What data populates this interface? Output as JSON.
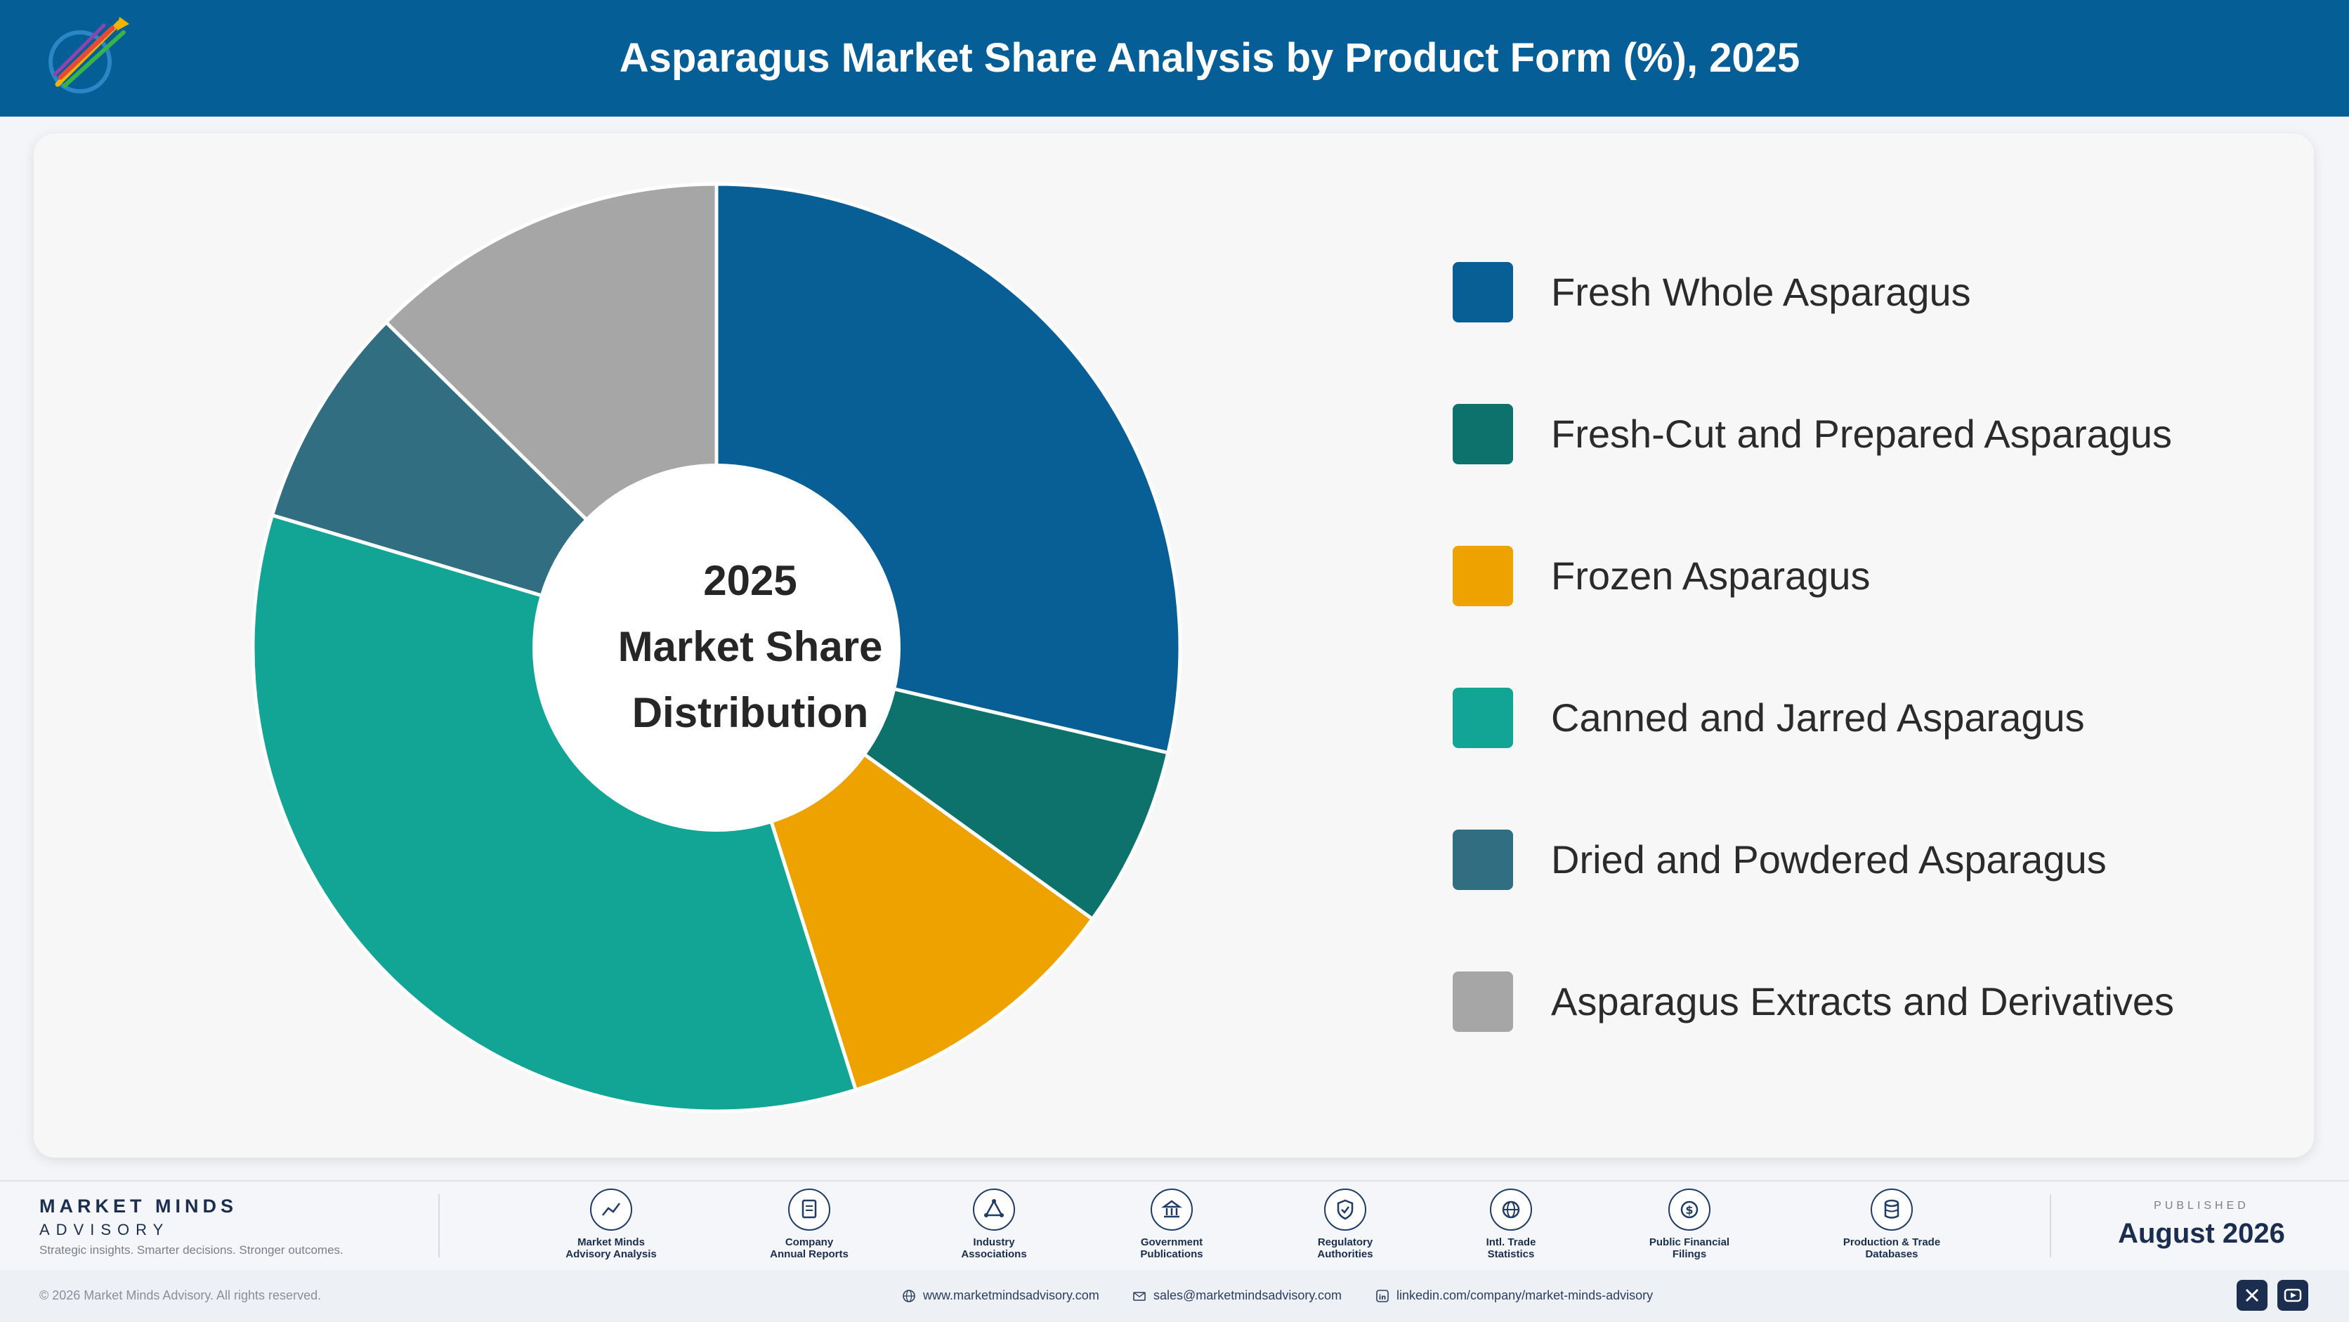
{
  "header": {
    "title": "Asparagus Market Share Analysis by Product Form (%), 2025"
  },
  "chart_data": {
    "type": "pie",
    "title": "Asparagus Market Share Analysis by Product Form (%), 2025",
    "donut_center_text": [
      "2025",
      "Market Share",
      "Distribution"
    ],
    "categories": [
      "Fresh Whole Asparagus",
      "Fresh-Cut and Prepared Asparagus",
      "Frozen Asparagus",
      "Canned and Jarred Asparagus",
      "Dried and Powdered Asparagus",
      "Asparagus Extracts and Derivatives"
    ],
    "values": [
      29.5,
      6.5,
      10.5,
      35.5,
      8.0,
      13.0
    ],
    "colors": [
      "#075f95",
      "#0d716c",
      "#eea200",
      "#12a595",
      "#316e82",
      "#a6a6a6"
    ],
    "legend_position": "right"
  },
  "footer": {
    "brand_name": "MARKET MINDS",
    "brand_sub": "ADVISORY",
    "tagline": "Strategic insights. Smarter decisions. Stronger outcomes.",
    "sources": [
      {
        "line1": "Market Minds",
        "line2": "Advisory Analysis",
        "icon": "chart-line-icon"
      },
      {
        "line1": "Company",
        "line2": "Annual Reports",
        "icon": "document-icon"
      },
      {
        "line1": "Industry",
        "line2": "Associations",
        "icon": "network-icon"
      },
      {
        "line1": "Government",
        "line2": "Publications",
        "icon": "government-building-icon"
      },
      {
        "line1": "Regulatory",
        "line2": "Authorities",
        "icon": "shield-check-icon"
      },
      {
        "line1": "Intl. Trade",
        "line2": "Statistics",
        "icon": "globe-icon"
      },
      {
        "line1": "Public Financial",
        "line2": "Filings",
        "icon": "dollar-coin-icon"
      },
      {
        "line1": "Production & Trade",
        "line2": "Databases",
        "icon": "database-icon"
      }
    ],
    "published_label": "PUBLISHED",
    "published_date": "August 2026"
  },
  "bottom": {
    "copyright": "© 2026 Market Minds Advisory. All rights reserved.",
    "website": "www.marketmindsadvisory.com",
    "email": "sales@marketmindsadvisory.com",
    "linkedin": "linkedin.com/company/market-minds-advisory"
  }
}
